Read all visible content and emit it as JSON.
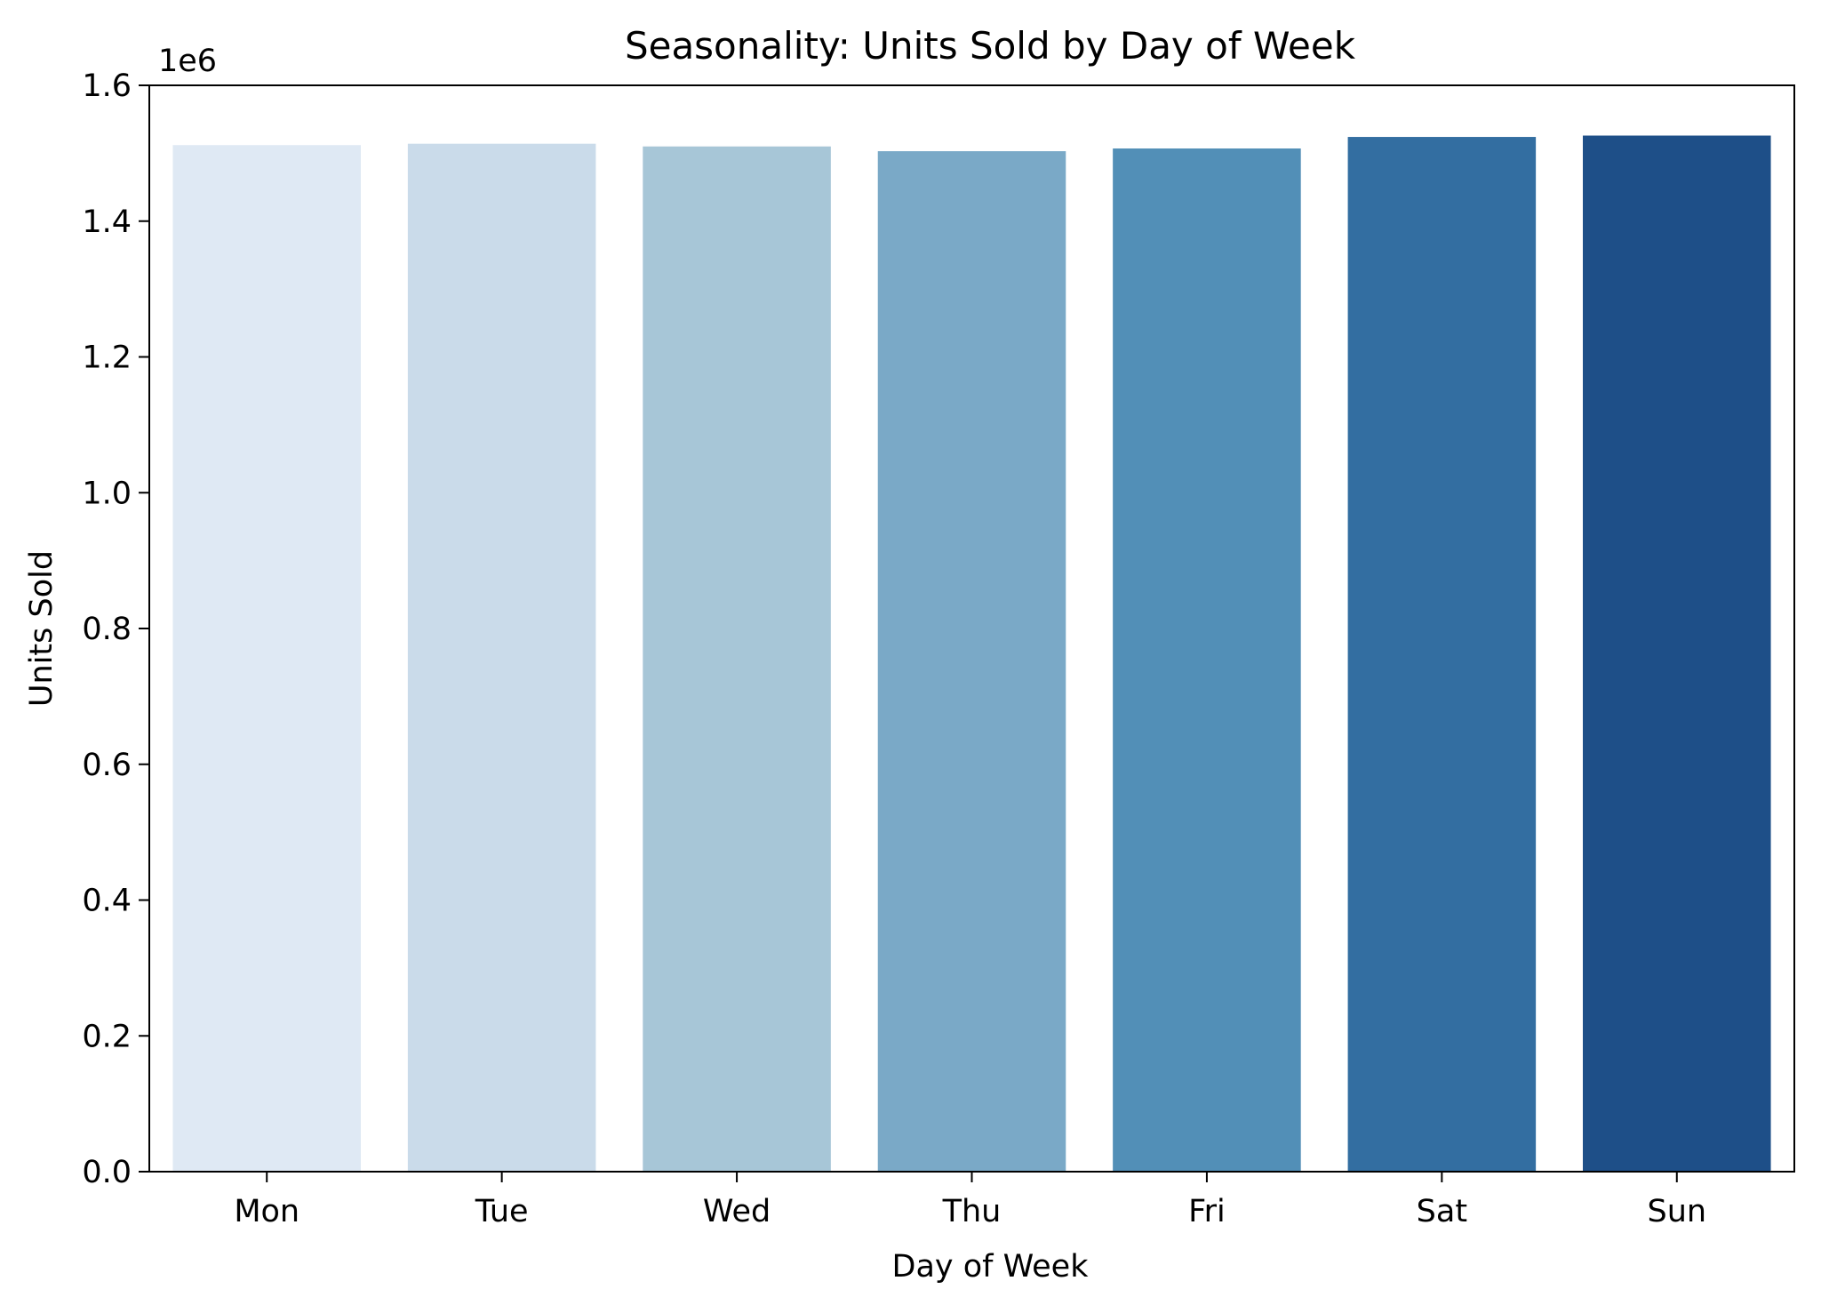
{
  "chart_data": {
    "type": "bar",
    "title": "Seasonality: Units Sold by Day of Week",
    "xlabel": "Day of Week",
    "ylabel": "Units Sold",
    "y_offset_label": "1e6",
    "categories": [
      "Mon",
      "Tue",
      "Wed",
      "Thu",
      "Fri",
      "Sat",
      "Sun"
    ],
    "values": [
      1512000,
      1514000,
      1510000,
      1503000,
      1507000,
      1524000,
      1526000
    ],
    "colors": [
      "#dfe9f4",
      "#cadbea",
      "#a7c6d7",
      "#7aa9c7",
      "#528fb7",
      "#336ea1",
      "#1e4f88"
    ],
    "ylim": [
      0,
      1600000
    ],
    "yticks": [
      0,
      200000,
      400000,
      600000,
      800000,
      1000000,
      1200000,
      1400000,
      1600000
    ],
    "ytick_labels": [
      "0.0",
      "0.2",
      "0.4",
      "0.6",
      "0.8",
      "1.0",
      "1.2",
      "1.4",
      "1.6"
    ],
    "grid": false,
    "legend": "none"
  }
}
